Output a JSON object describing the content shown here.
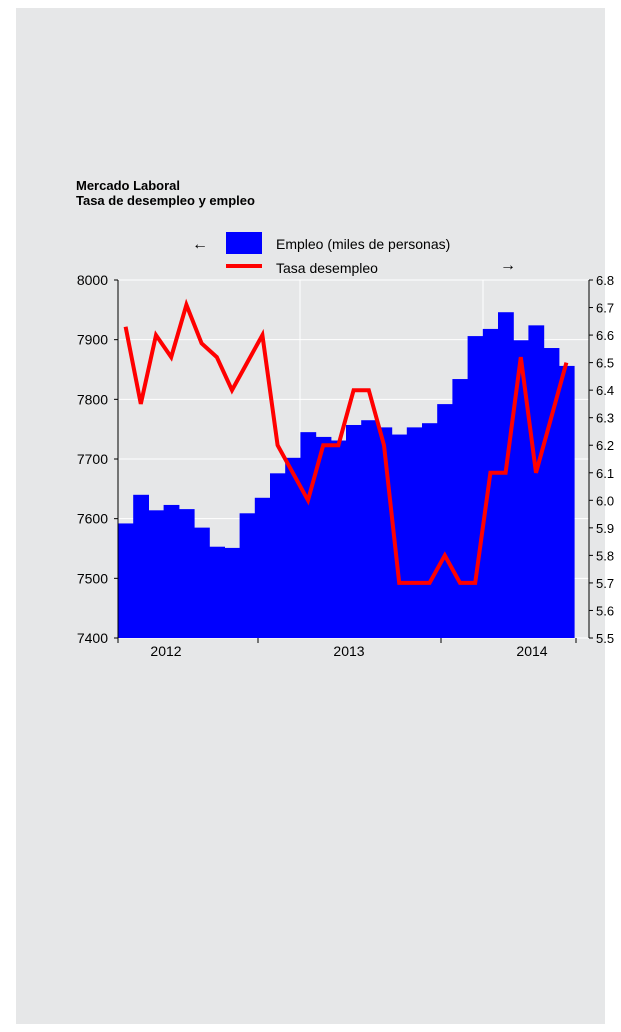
{
  "chart_data": {
    "type": "bar+line",
    "title": "Mercado Laboral",
    "subtitle": "Tasa de desempleo y empleo",
    "xlabel": "",
    "ylabel": "",
    "x_tick_labels": [
      "2012",
      "2013",
      "2014"
    ],
    "y_left": {
      "lim": [
        7400,
        8000
      ],
      "ticks": [
        "8000",
        "7900",
        "7800",
        "7700",
        "7600",
        "7500",
        "7400"
      ]
    },
    "y_right": {
      "lim": [
        5.5,
        6.8
      ],
      "ticks": [
        "6.8",
        "6.7",
        "6.6",
        "6.5",
        "6.4",
        "6.3",
        "6.2",
        "6.1",
        "6.0",
        "5.9",
        "5.8",
        "5.7",
        "5.6",
        "5.5"
      ]
    },
    "grid": true,
    "legend": {
      "placement": "top-center",
      "left_arrow": "←",
      "right_arrow": "→"
    },
    "series": [
      {
        "name": "Empleo (miles de personas)",
        "type": "bar",
        "axis": "left",
        "color": "#0000ff",
        "values": [
          7592,
          7640,
          7614,
          7623,
          7616,
          7585,
          7553,
          7551,
          7609,
          7635,
          7676,
          7702,
          7745,
          7737,
          7731,
          7757,
          7765,
          7753,
          7741,
          7753,
          7760,
          7792,
          7834,
          7906,
          7918,
          7946,
          7899,
          7924,
          7886,
          7856
        ]
      },
      {
        "name": "Tasa desempleo",
        "type": "line",
        "axis": "right",
        "color": "#ff0000",
        "values": [
          6.63,
          6.35,
          6.6,
          6.52,
          6.71,
          6.57,
          6.52,
          6.4,
          6.5,
          6.6,
          6.2,
          6.1,
          6.0,
          6.2,
          6.2,
          6.4,
          6.4,
          6.2,
          5.7,
          5.7,
          5.7,
          5.8,
          5.7,
          5.7,
          6.1,
          6.1,
          6.52,
          6.1,
          6.3,
          6.5
        ]
      }
    ]
  }
}
